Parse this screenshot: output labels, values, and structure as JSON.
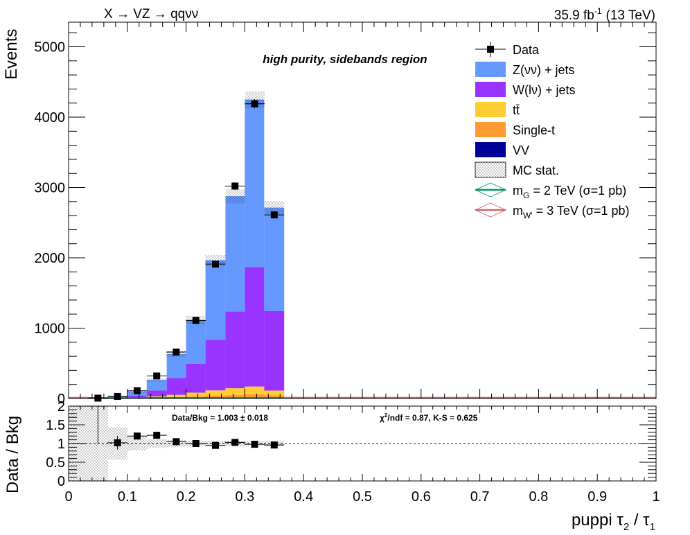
{
  "header": {
    "process": "X → VZ → qqνν",
    "lumi": "35.9 fb",
    "lumi_sup": "-1",
    "energy": "(13 TeV)"
  },
  "region_label": "high purity, sidebands region",
  "legend": [
    {
      "key": "data",
      "label": "Data",
      "style": "marker"
    },
    {
      "key": "znn",
      "label": "Z(νν) + jets",
      "style": "fill",
      "color": "#6699ff"
    },
    {
      "key": "wln",
      "label": "W(lν) + jets",
      "style": "fill",
      "color": "#9933ff"
    },
    {
      "key": "tt",
      "label": "tt̄",
      "style": "fill",
      "color": "#ffcc33"
    },
    {
      "key": "st",
      "label": "Single-t",
      "style": "fill",
      "color": "#ff9933"
    },
    {
      "key": "vv",
      "label": "VV",
      "style": "fill",
      "color": "#000099"
    },
    {
      "key": "mcstat",
      "label": "MC stat.",
      "style": "hatch"
    },
    {
      "key": "sigG",
      "label_pre": "m",
      "label_sub": "G",
      "label_post": " = 2 TeV (σ=1 pb)",
      "style": "line",
      "color": "#009966"
    },
    {
      "key": "sigW",
      "label_pre": "m",
      "label_sub": "W'",
      "label_post": " = 3 TeV (σ=1 pb)",
      "style": "line",
      "color": "#cc6666"
    }
  ],
  "ratio_box": {
    "left": "Data/Bkg = 1.003 ± 0.018",
    "right_chi": "χ",
    "right_sup": "2",
    "right_rest": "/ndf = 0.87,   K-S = 0.625"
  },
  "chart_data": {
    "type": "bar",
    "stacked": true,
    "xlabel_pre": "puppi τ",
    "xlabel_sub1": "2",
    "xlabel_mid": " / τ",
    "xlabel_sub2": "1",
    "ylabel": "Events",
    "ratio_ylabel": "Data / Bkg",
    "xlim": [
      0,
      1
    ],
    "ylim": [
      0,
      5350
    ],
    "ratio_ylim": [
      0,
      2
    ],
    "x_ticks": [
      0,
      0.1,
      0.2,
      0.3,
      0.4,
      0.5,
      0.6,
      0.7,
      0.8,
      0.9,
      1
    ],
    "x_tick_labels": [
      "0",
      "0.1",
      "0.2",
      "0.3",
      "0.4",
      "0.5",
      "0.6",
      "0.7",
      "0.8",
      "0.9",
      "1"
    ],
    "y_ticks": [
      0,
      1000,
      2000,
      3000,
      4000,
      5000
    ],
    "y_tick_labels": [
      "0",
      "1000",
      "2000",
      "3000",
      "4000",
      "5000"
    ],
    "ratio_y_ticks": [
      0,
      0.5,
      1,
      1.5,
      2
    ],
    "ratio_y_tick_labels": [
      "0",
      "0.5",
      "1",
      "1.5",
      "2"
    ],
    "bin_edges": [
      0.033,
      0.067,
      0.1,
      0.133,
      0.167,
      0.2,
      0.233,
      0.267,
      0.3,
      0.333,
      0.367
    ],
    "series": [
      {
        "name": "VV",
        "color": "#000099",
        "values": [
          0,
          0,
          1,
          3,
          5,
          8,
          12,
          16,
          20,
          18
        ]
      },
      {
        "name": "Single-t",
        "color": "#ff9933",
        "values": [
          0,
          0,
          2,
          6,
          12,
          20,
          28,
          35,
          40,
          25
        ]
      },
      {
        "name": "tt̄",
        "color": "#ffcc33",
        "values": [
          0,
          1,
          5,
          20,
          35,
          55,
          75,
          95,
          110,
          70
        ]
      },
      {
        "name": "W(lν) + jets",
        "color": "#9933ff",
        "values": [
          3,
          10,
          35,
          85,
          240,
          410,
          720,
          1090,
          1700,
          1130
        ]
      },
      {
        "name": "Z(νν) + jets",
        "color": "#6699ff",
        "values": [
          5,
          14,
          50,
          150,
          340,
          620,
          1130,
          1640,
          2380,
          1470
        ]
      }
    ],
    "mc_stat_unc": [
      8,
      10,
      15,
      25,
      40,
      60,
      80,
      100,
      120,
      90
    ],
    "data": {
      "name": "Data",
      "x": [
        0.05,
        0.0833,
        0.1167,
        0.15,
        0.1833,
        0.2167,
        0.25,
        0.2833,
        0.3167,
        0.35
      ],
      "values": [
        5,
        30,
        110,
        320,
        660,
        1110,
        1910,
        3020,
        4190,
        2610
      ]
    },
    "ratio": {
      "x": [
        0.0833,
        0.1167,
        0.15,
        0.1833,
        0.2167,
        0.25,
        0.2833,
        0.3167,
        0.35
      ],
      "values": [
        1.02,
        1.2,
        1.22,
        1.05,
        1.0,
        0.95,
        1.03,
        0.98,
        0.96
      ],
      "errors": [
        0.18,
        0.08,
        0.06,
        0.04,
        0.03,
        0.025,
        0.02,
        0.015,
        0.02
      ]
    },
    "ratio_band": {
      "x_range": [
        0.0,
        0.067
      ],
      "half_width": 1.0
    }
  }
}
